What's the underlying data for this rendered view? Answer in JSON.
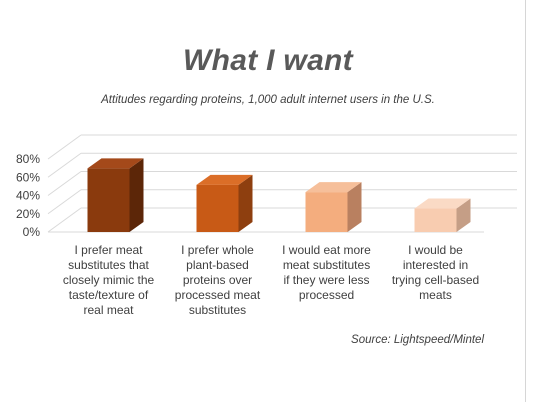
{
  "chart_data": {
    "type": "bar",
    "title": "What I want",
    "subtitle": "Attitudes regarding proteins, 1,000 adult internet users in the U.S.",
    "categories": [
      "I prefer meat substitutes that closely mimic the taste/texture of real meat",
      "I prefer whole plant-based proteins over processed meat substitutes",
      "I would eat more meat substitutes if they were less processed",
      "I would be interested in trying cell-based meats"
    ],
    "category_lines": [
      [
        "I prefer meat",
        "substitutes that",
        "closely mimic the",
        "taste/texture of",
        "real meat"
      ],
      [
        "I prefer whole",
        "plant-based",
        "proteins over",
        "processed meat",
        "substitutes"
      ],
      [
        "I would eat more",
        "meat substitutes",
        "if they were less",
        "processed"
      ],
      [
        "I would be",
        "interested in",
        "trying cell-based",
        "meats"
      ]
    ],
    "values": [
      73,
      55,
      47,
      29
    ],
    "ylim": [
      0,
      80
    ],
    "yticks": [
      "0%",
      "20%",
      "40%",
      "60%",
      "80%"
    ],
    "grid": true,
    "style": "3d",
    "bar_colors": [
      "#8a3a0d",
      "#c85a16",
      "#f4ad7e",
      "#f8ccb0"
    ],
    "bar_side_colors": [
      "#5c2608",
      "#8e3f0f",
      "#b98060",
      "#c59e86"
    ],
    "bar_top_colors": [
      "#a4491a",
      "#db6e28",
      "#f6bf9a",
      "#fadac5"
    ],
    "xlabel": "",
    "ylabel": ""
  },
  "source": "Source: Lightspeed/Mintel"
}
